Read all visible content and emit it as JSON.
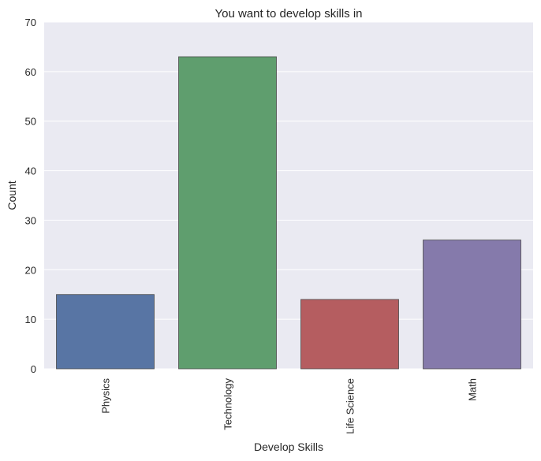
{
  "chart_data": {
    "type": "bar",
    "title": "You want to develop skills in",
    "xlabel": "Develop Skills",
    "ylabel": "Count",
    "categories": [
      "Physics",
      "Technology",
      "Life Science",
      "Math"
    ],
    "values": [
      15,
      63,
      14,
      26
    ],
    "colors": [
      "#5875a4",
      "#5f9e6e",
      "#b55d60",
      "#857aab"
    ],
    "ylim": [
      0,
      70
    ],
    "yticks": [
      0,
      10,
      20,
      30,
      40,
      50,
      60,
      70
    ],
    "grid": true,
    "background": "#eaeaf2",
    "x_tick_rotation": "vertical"
  }
}
